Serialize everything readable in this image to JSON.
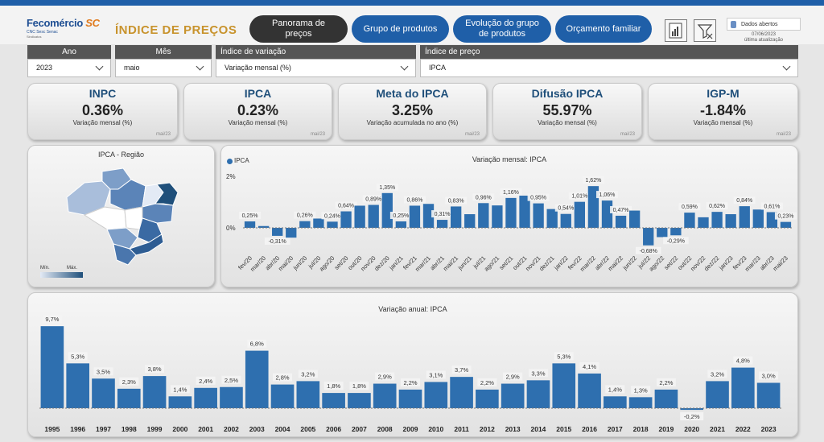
{
  "header": {
    "logo_text": "Fecomércio",
    "logo_sc": "SC",
    "logo_sub": "CNC Sesc Senac",
    "logo_sub2": "Sindicatos",
    "title": "ÍNDICE DE PREÇOS",
    "nav": [
      {
        "label": "Panorama de preços",
        "active": true
      },
      {
        "label": "Grupo de produtos",
        "active": false
      },
      {
        "label": "Evolução do grupo de produtos",
        "active": false
      },
      {
        "label": "Orçamento familiar",
        "active": false
      }
    ],
    "open_data": "Dados abertos",
    "update_date": "07/06/2023",
    "update_label": "última atualização"
  },
  "filters": {
    "ano": {
      "label": "Ano",
      "value": "2023"
    },
    "mes": {
      "label": "Mês",
      "value": "maio"
    },
    "indice_variacao": {
      "label": "Índice de variação",
      "value": "Variação mensal (%)"
    },
    "indice_preco": {
      "label": "Índice de preço",
      "value": "IPCA"
    }
  },
  "cards": [
    {
      "title": "INPC",
      "value": "0.36%",
      "subtitle": "Variação mensal (%)",
      "date": "mai/23"
    },
    {
      "title": "IPCA",
      "value": "0.23%",
      "subtitle": "Variação mensal (%)",
      "date": "mai/23"
    },
    {
      "title": "Meta do IPCA",
      "value": "3.25%",
      "subtitle": "Variação acumulada no ano (%)",
      "date": "mai/23"
    },
    {
      "title": "Difusão IPCA",
      "value": "55.97%",
      "subtitle": "Variação mensal (%)",
      "date": "mai/23"
    },
    {
      "title": "IGP-M",
      "value": "-1.84%",
      "subtitle": "Variação mensal (%)",
      "date": "mai/23"
    }
  ],
  "map": {
    "title": "IPCA - Região",
    "legend_min": "Mín.",
    "legend_max": "Máx."
  },
  "colors": {
    "bar": "#2e6faf",
    "bar_dark": "#1f5fa8",
    "accent_gold": "#c8932c",
    "nav_blue": "#1f5fa8",
    "nav_dark": "#333333"
  },
  "chart_data": [
    {
      "type": "bar",
      "title": "Variação mensal:  IPCA",
      "legend": [
        "IPCA"
      ],
      "ytick_labels": [
        "2%",
        "0%"
      ],
      "ylim": [
        -0.9,
        2.1
      ],
      "categories": [
        "fev/20",
        "mar/20",
        "abr/20",
        "mai/20",
        "jun/20",
        "jul/20",
        "ago/20",
        "set/20",
        "out/20",
        "nov/20",
        "dez/20",
        "jan/21",
        "fev/21",
        "mar/21",
        "abr/21",
        "mai/21",
        "jun/21",
        "jul/21",
        "ago/21",
        "set/21",
        "out/21",
        "nov/21",
        "dez/21",
        "jan/22",
        "fev/22",
        "mar/22",
        "abr/22",
        "mai/22",
        "jun/22",
        "jul/22",
        "ago/22",
        "set/22",
        "out/22",
        "nov/22",
        "dez/22",
        "jan/23",
        "fev/23",
        "mar/23",
        "abr/23",
        "mai/23"
      ],
      "values": [
        0.25,
        0.07,
        -0.31,
        -0.38,
        0.26,
        0.36,
        0.24,
        0.64,
        0.86,
        0.89,
        1.35,
        0.25,
        0.86,
        0.93,
        0.31,
        0.83,
        0.53,
        0.96,
        0.87,
        1.16,
        1.25,
        0.95,
        0.73,
        0.54,
        1.01,
        1.62,
        1.06,
        0.47,
        0.67,
        -0.68,
        -0.36,
        -0.29,
        0.59,
        0.41,
        0.62,
        0.53,
        0.84,
        0.71,
        0.61,
        0.23
      ],
      "data_labels": [
        "0,25%",
        "",
        "-0,31%",
        "",
        "0,26%",
        "",
        "0,24%",
        "0,64%",
        "",
        "0,89%",
        "1,35%",
        "0,25%",
        "0,86%",
        "",
        "0,31%",
        "0,83%",
        "",
        "0,96%",
        "",
        "1,16%",
        "",
        "0,95%",
        "",
        "0,54%",
        "1,01%",
        "1,62%",
        "1,06%",
        "0,47%",
        "",
        "-0,68%",
        "",
        "-0,29%",
        "0,59%",
        "",
        "0,62%",
        "",
        "0,84%",
        "",
        "0,61%",
        "0,23%"
      ]
    },
    {
      "type": "bar",
      "title": "Variação anual:  IPCA",
      "ylim": [
        -0.7,
        10.2
      ],
      "categories": [
        "1995",
        "1996",
        "1997",
        "1998",
        "1999",
        "2000",
        "2001",
        "2002",
        "2003",
        "2004",
        "2005",
        "2006",
        "2007",
        "2008",
        "2009",
        "2010",
        "2011",
        "2012",
        "2013",
        "2014",
        "2015",
        "2016",
        "2017",
        "2018",
        "2019",
        "2020",
        "2021",
        "2022",
        "2023"
      ],
      "values": [
        9.7,
        5.3,
        3.5,
        2.3,
        3.8,
        1.4,
        2.4,
        2.5,
        6.8,
        2.8,
        3.2,
        1.8,
        1.8,
        2.9,
        2.2,
        3.1,
        3.7,
        2.2,
        2.9,
        3.3,
        5.3,
        4.1,
        1.4,
        1.3,
        2.2,
        -0.2,
        3.2,
        4.8,
        3.0
      ],
      "data_labels": [
        "9,7%",
        "5,3%",
        "3,5%",
        "2,3%",
        "3,8%",
        "1,4%",
        "2,4%",
        "2,5%",
        "6,8%",
        "2,8%",
        "3,2%",
        "1,8%",
        "1,8%",
        "2,9%",
        "2,2%",
        "3,1%",
        "3,7%",
        "2,2%",
        "2,9%",
        "3,3%",
        "5,3%",
        "4,1%",
        "1,4%",
        "1,3%",
        "2,2%",
        "-0,2%",
        "3,2%",
        "4,8%",
        "3,0%"
      ]
    }
  ]
}
